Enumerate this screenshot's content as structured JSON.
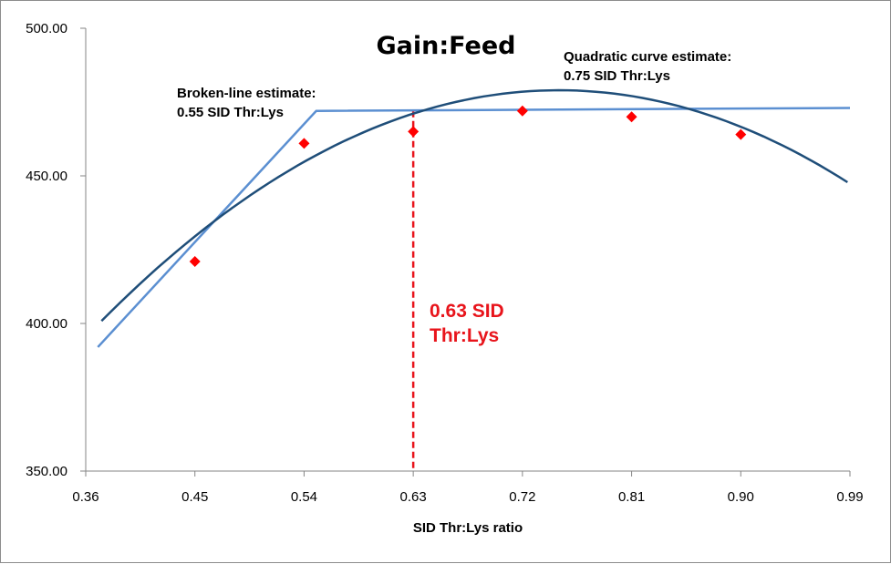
{
  "chart_data": {
    "type": "scatter",
    "title": "Gain:Feed",
    "xlabel": "SID Thr:Lys ratio",
    "ylabel": "",
    "xlim": [
      0.36,
      0.99
    ],
    "ylim": [
      350,
      500
    ],
    "x_ticks": [
      "0.36",
      "0.45",
      "0.54",
      "0.63",
      "0.72",
      "0.81",
      "0.90",
      "0.99"
    ],
    "y_ticks": [
      "350.00",
      "400.00",
      "450.00",
      "500.00"
    ],
    "grid": false,
    "series": [
      {
        "kind": "points",
        "marker": "diamond",
        "color": "#ff0000",
        "points": [
          {
            "x": 0.45,
            "y": 421
          },
          {
            "x": 0.54,
            "y": 461
          },
          {
            "x": 0.63,
            "y": 465
          },
          {
            "x": 0.72,
            "y": 472
          },
          {
            "x": 0.81,
            "y": 470
          },
          {
            "x": 0.9,
            "y": 464
          }
        ]
      },
      {
        "kind": "broken-line",
        "color": "#5b8fd1",
        "points": [
          {
            "x": 0.37,
            "y": 392
          },
          {
            "x": 0.55,
            "y": 472
          },
          {
            "x": 0.99,
            "y": 473
          }
        ]
      },
      {
        "kind": "quadratic",
        "color": "#1f4e79",
        "x_from": 0.373,
        "x_to": 0.988,
        "vertex": {
          "x": 0.75,
          "y": 479
        },
        "through": {
          "x": 0.45,
          "y": 429.5
        }
      }
    ],
    "reference_line": {
      "x": 0.63,
      "color": "#e8141b"
    },
    "annotations": {
      "broken_line": [
        "Broken-line estimate:",
        "0.55 SID Thr:Lys"
      ],
      "quadratic": [
        "Quadratic curve estimate:",
        "0.75 SID Thr:Lys"
      ],
      "breakpoint": [
        "0.63 SID",
        "Thr:Lys"
      ]
    }
  }
}
